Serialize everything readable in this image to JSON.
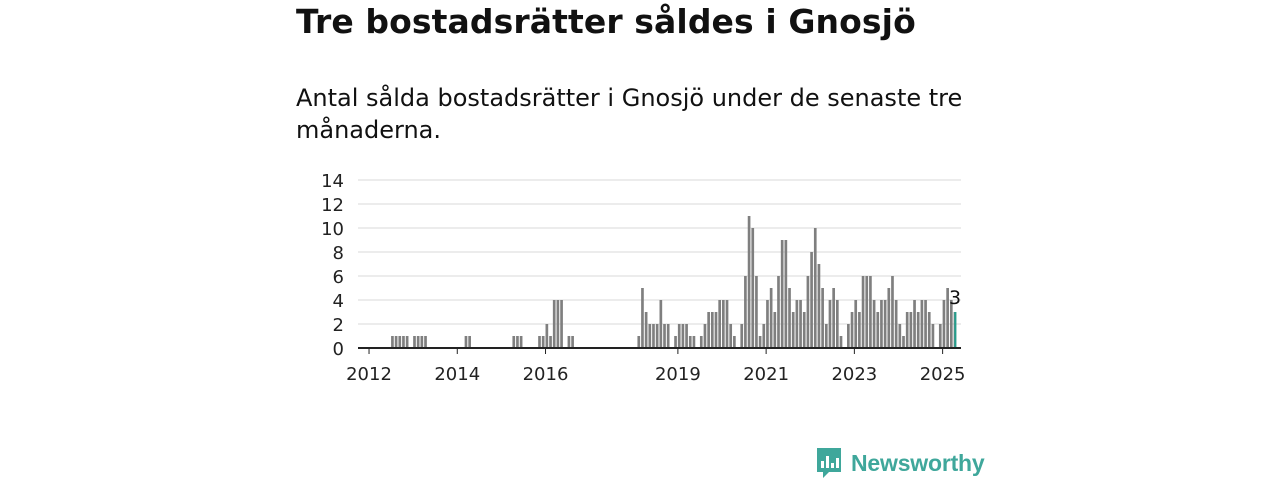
{
  "header": {
    "title": "Tre bostadsrätter såldes i Gnosjö",
    "subtitle": "Antal sålda bostadsrätter i Gnosjö under de senaste tre månaderna."
  },
  "brand": {
    "name": "Newsworthy",
    "color": "#3fa79b",
    "icon": "bar-chart-logo-icon"
  },
  "chart_data": {
    "type": "bar",
    "ylim": [
      0,
      14
    ],
    "yticks": [
      0,
      2,
      4,
      6,
      8,
      10,
      12,
      14
    ],
    "xticks": [
      "2012",
      "2014",
      "2016",
      "2019",
      "2021",
      "2023",
      "2025"
    ],
    "x_range": [
      "2011-10",
      "2025-06"
    ],
    "bar_color": "#7f7f7f",
    "highlight_color": "#22a08e",
    "grid": true,
    "annotation": {
      "label": "3",
      "month": "2025-04"
    },
    "series": [
      {
        "points": [
          [
            "2012-07",
            1
          ],
          [
            "2012-08",
            1
          ],
          [
            "2012-09",
            1
          ],
          [
            "2012-10",
            1
          ],
          [
            "2012-11",
            1
          ],
          [
            "2013-01",
            1
          ],
          [
            "2013-02",
            1
          ],
          [
            "2013-03",
            1
          ],
          [
            "2013-04",
            1
          ],
          [
            "2014-03",
            1
          ],
          [
            "2014-04",
            1
          ],
          [
            "2015-04",
            1
          ],
          [
            "2015-05",
            1
          ],
          [
            "2015-06",
            1
          ],
          [
            "2015-11",
            1
          ],
          [
            "2015-12",
            1
          ],
          [
            "2016-01",
            2
          ],
          [
            "2016-02",
            1
          ],
          [
            "2016-03",
            4
          ],
          [
            "2016-04",
            4
          ],
          [
            "2016-05",
            4
          ],
          [
            "2016-07",
            1
          ],
          [
            "2016-08",
            1
          ],
          [
            "2018-02",
            1
          ],
          [
            "2018-03",
            5
          ],
          [
            "2018-04",
            3
          ],
          [
            "2018-05",
            2
          ],
          [
            "2018-06",
            2
          ],
          [
            "2018-07",
            2
          ],
          [
            "2018-08",
            4
          ],
          [
            "2018-09",
            2
          ],
          [
            "2018-10",
            2
          ],
          [
            "2018-12",
            1
          ],
          [
            "2019-01",
            2
          ],
          [
            "2019-02",
            2
          ],
          [
            "2019-03",
            2
          ],
          [
            "2019-04",
            1
          ],
          [
            "2019-05",
            1
          ],
          [
            "2019-07",
            1
          ],
          [
            "2019-08",
            2
          ],
          [
            "2019-09",
            3
          ],
          [
            "2019-10",
            3
          ],
          [
            "2019-11",
            3
          ],
          [
            "2019-12",
            4
          ],
          [
            "2020-01",
            4
          ],
          [
            "2020-02",
            4
          ],
          [
            "2020-03",
            2
          ],
          [
            "2020-04",
            1
          ],
          [
            "2020-06",
            2
          ],
          [
            "2020-07",
            6
          ],
          [
            "2020-08",
            11
          ],
          [
            "2020-09",
            10
          ],
          [
            "2020-10",
            6
          ],
          [
            "2020-11",
            1
          ],
          [
            "2020-12",
            2
          ],
          [
            "2021-01",
            4
          ],
          [
            "2021-02",
            5
          ],
          [
            "2021-03",
            3
          ],
          [
            "2021-04",
            6
          ],
          [
            "2021-05",
            9
          ],
          [
            "2021-06",
            9
          ],
          [
            "2021-07",
            5
          ],
          [
            "2021-08",
            3
          ],
          [
            "2021-09",
            4
          ],
          [
            "2021-10",
            4
          ],
          [
            "2021-11",
            3
          ],
          [
            "2021-12",
            6
          ],
          [
            "2022-01",
            8
          ],
          [
            "2022-02",
            10
          ],
          [
            "2022-03",
            7
          ],
          [
            "2022-04",
            5
          ],
          [
            "2022-05",
            2
          ],
          [
            "2022-06",
            4
          ],
          [
            "2022-07",
            5
          ],
          [
            "2022-08",
            4
          ],
          [
            "2022-09",
            1
          ],
          [
            "2022-11",
            2
          ],
          [
            "2022-12",
            3
          ],
          [
            "2023-01",
            4
          ],
          [
            "2023-02",
            3
          ],
          [
            "2023-03",
            6
          ],
          [
            "2023-04",
            6
          ],
          [
            "2023-05",
            6
          ],
          [
            "2023-06",
            4
          ],
          [
            "2023-07",
            3
          ],
          [
            "2023-08",
            4
          ],
          [
            "2023-09",
            4
          ],
          [
            "2023-10",
            5
          ],
          [
            "2023-11",
            6
          ],
          [
            "2023-12",
            4
          ],
          [
            "2024-01",
            2
          ],
          [
            "2024-02",
            1
          ],
          [
            "2024-03",
            3
          ],
          [
            "2024-04",
            3
          ],
          [
            "2024-05",
            4
          ],
          [
            "2024-06",
            3
          ],
          [
            "2024-07",
            4
          ],
          [
            "2024-08",
            4
          ],
          [
            "2024-09",
            3
          ],
          [
            "2024-10",
            2
          ],
          [
            "2024-12",
            2
          ],
          [
            "2025-01",
            4
          ],
          [
            "2025-02",
            5
          ],
          [
            "2025-03",
            4
          ],
          [
            "2025-04",
            3
          ]
        ]
      }
    ]
  }
}
